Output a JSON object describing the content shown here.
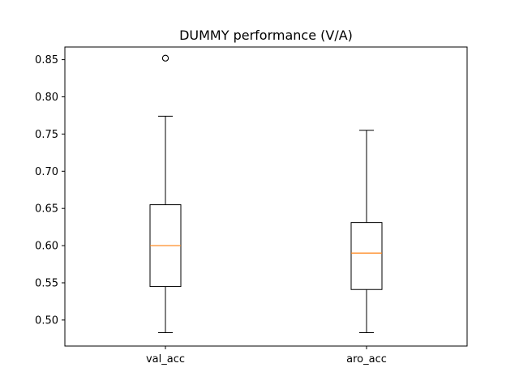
{
  "chart_data": {
    "type": "boxplot",
    "title": "DUMMY performance (V/A)",
    "xlabel": "",
    "ylabel": "",
    "ylim": [
      0.465,
      0.867
    ],
    "yticks": [
      "0.50",
      "0.55",
      "0.60",
      "0.65",
      "0.70",
      "0.75",
      "0.80",
      "0.85"
    ],
    "ytick_values": [
      0.5,
      0.55,
      0.6,
      0.65,
      0.7,
      0.75,
      0.8,
      0.85
    ],
    "categories": [
      "val_acc",
      "aro_acc"
    ],
    "boxes": [
      {
        "category": "val_acc",
        "whisker_low": 0.483,
        "q1": 0.545,
        "median": 0.6,
        "q3": 0.655,
        "whisker_high": 0.774,
        "outliers": [
          0.852
        ]
      },
      {
        "category": "aro_acc",
        "whisker_low": 0.483,
        "q1": 0.541,
        "median": 0.59,
        "q3": 0.631,
        "whisker_high": 0.755,
        "outliers": []
      }
    ],
    "colors": {
      "box": "#000000",
      "median": "#ff7f0e",
      "outlier": "#000000",
      "axes": "#000000"
    },
    "grid": false,
    "legend": "none"
  }
}
